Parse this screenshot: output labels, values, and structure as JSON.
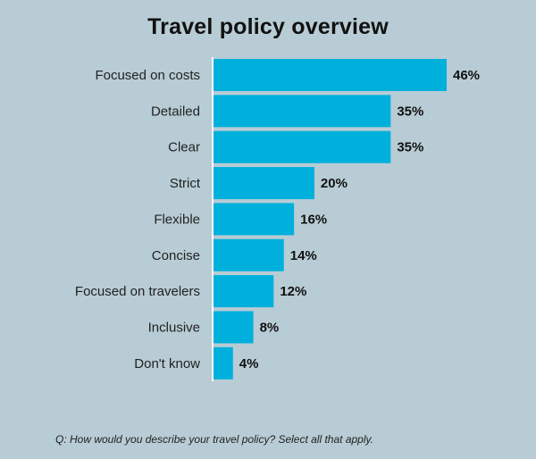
{
  "chart_data": {
    "type": "bar",
    "orientation": "horizontal",
    "title": "Travel policy overview",
    "categories": [
      "Focused on costs",
      "Detailed",
      "Clear",
      "Strict",
      "Flexible",
      "Concise",
      "Focused on travelers",
      "Inclusive",
      "Don't know"
    ],
    "values": [
      46,
      35,
      35,
      20,
      16,
      14,
      12,
      8,
      4
    ],
    "value_labels": [
      "46%",
      "35%",
      "35%",
      "20%",
      "16%",
      "14%",
      "12%",
      "8%",
      "4%"
    ],
    "unit": "%",
    "xlim": [
      0,
      46
    ],
    "bar_color": "#00b0dc",
    "axis_color": "#ffffff",
    "grid": false,
    "legend": "none"
  },
  "footnote": "Q: How would you describe your travel policy? Select all that apply.",
  "colors": {
    "background": "#b8ccd5",
    "text": "#111111"
  }
}
